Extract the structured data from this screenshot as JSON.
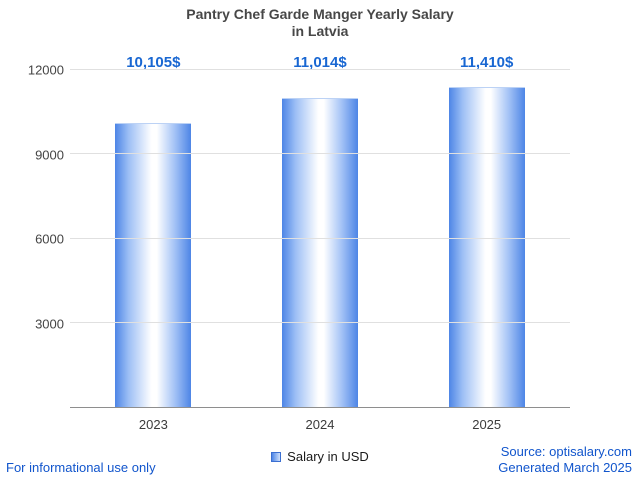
{
  "title": {
    "line1": "Pantry Chef Garde Manger Yearly Salary",
    "line2": "in Latvia"
  },
  "chart_data": {
    "type": "bar",
    "title": "Pantry Chef Garde Manger Yearly Salary in Latvia",
    "categories": [
      "2023",
      "2024",
      "2025"
    ],
    "values": [
      10105,
      11014,
      11410
    ],
    "value_labels": [
      "10,105$",
      "11,014$",
      "11,410$"
    ],
    "xlabel": "",
    "ylabel": "",
    "ylim": [
      0,
      12000
    ],
    "yticks": [
      3000,
      6000,
      9000,
      12000
    ],
    "grid": true,
    "legend": {
      "label": "Salary in USD",
      "position": "bottom"
    },
    "bar_color_edge": "#4d85e6",
    "bar_color_center": "#ffffff",
    "value_label_color": "#1967d2"
  },
  "footer": {
    "disclaimer": "For informational use only",
    "source": "Source: optisalary.com",
    "generated": "Generated March 2025"
  }
}
